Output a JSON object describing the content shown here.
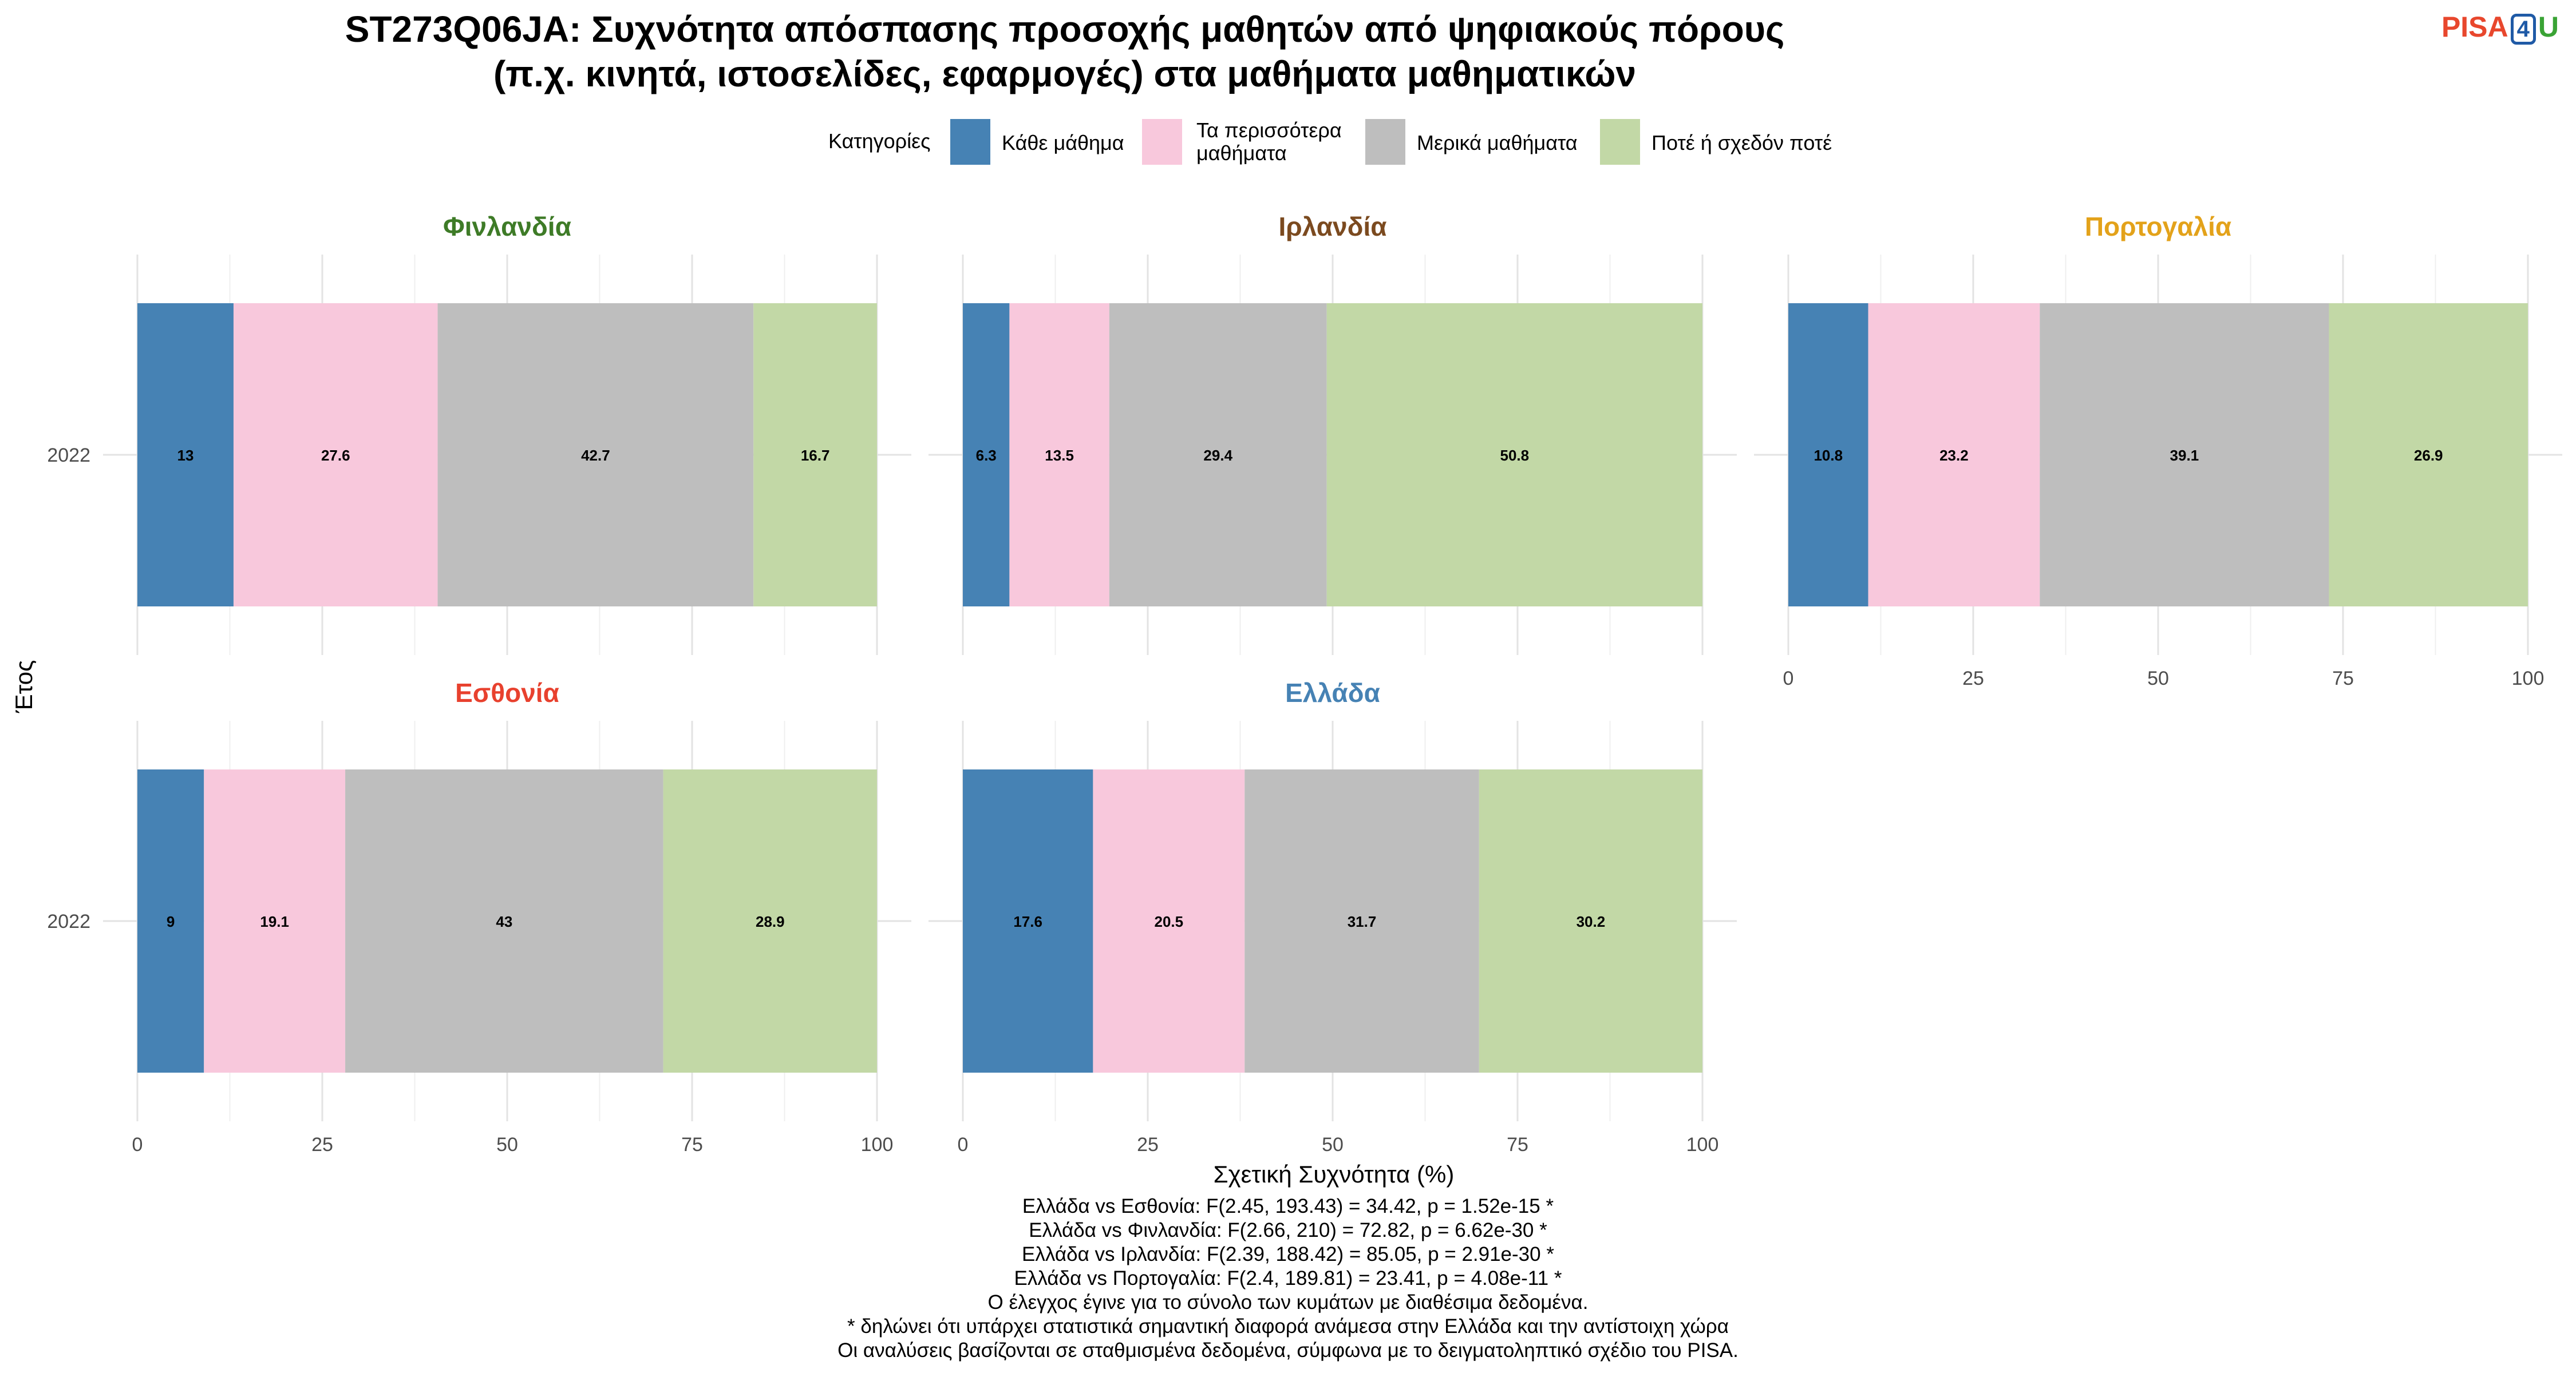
{
  "title_lines": [
    "ST273Q06JA: Συχνότητα απόσπασης προσοχής μαθητών από ψηφιακούς πόρους",
    "(π.χ. κινητά, ιστοσελίδες, εφαρμογές) στα μαθήματα μαθηματικών"
  ],
  "logo": {
    "part1": "PISA",
    "part2": "4",
    "part3": "U"
  },
  "legend": {
    "title": "Κατηγορίες",
    "items": [
      {
        "label_lines": [
          "Κάθε μάθημα"
        ],
        "color": "#4682b4"
      },
      {
        "label_lines": [
          "Τα περισσότερα",
          "μαθήματα"
        ],
        "color": "#f8c8dc"
      },
      {
        "label_lines": [
          "Μερικά μαθήματα"
        ],
        "color": "#bebebe"
      },
      {
        "label_lines": [
          "Ποτέ ή σχεδόν ποτέ"
        ],
        "color": "#c2d8a6"
      }
    ]
  },
  "chart_data": {
    "type": "bar",
    "orientation": "horizontal",
    "stacked": true,
    "xlabel": "Σχετική Συχνότητα (%)",
    "ylabel": "Έτος",
    "xlim": [
      0,
      100
    ],
    "xticks": [
      0,
      25,
      50,
      75,
      100
    ],
    "categories": [
      "2022"
    ],
    "series_names": [
      "Κάθε μάθημα",
      "Τα περισσότερα μαθήματα",
      "Μερικά μαθήματα",
      "Ποτέ ή σχεδόν ποτέ"
    ],
    "colors": [
      "#4682b4",
      "#f8c8dc",
      "#bebebe",
      "#c2d8a6"
    ],
    "panels": [
      {
        "name": "Φινλανδία",
        "title_color": "#3e7b27",
        "values": [
          13,
          27.6,
          42.7,
          16.7
        ],
        "labels": [
          "13",
          "27.6",
          "42.7",
          "16.7"
        ]
      },
      {
        "name": "Ιρλανδία",
        "title_color": "#7b4a1f",
        "values": [
          6.3,
          13.5,
          29.4,
          50.8
        ],
        "labels": [
          "6.3",
          "13.5",
          "29.4",
          "50.8"
        ]
      },
      {
        "name": "Πορτογαλία",
        "title_color": "#e3a21a",
        "values": [
          10.8,
          23.2,
          39.1,
          26.9
        ],
        "labels": [
          "10.8",
          "23.2",
          "39.1",
          "26.9"
        ]
      },
      {
        "name": "Εσθονία",
        "title_color": "#e8412e",
        "values": [
          9,
          19.1,
          43,
          28.9
        ],
        "labels": [
          "9",
          "19.1",
          "43",
          "28.9"
        ]
      },
      {
        "name": "Ελλάδα",
        "title_color": "#4682b4",
        "values": [
          17.6,
          20.5,
          31.7,
          30.2
        ],
        "labels": [
          "17.6",
          "20.5",
          "31.7",
          "30.2"
        ]
      }
    ]
  },
  "caption_lines": [
    "Ελλάδα vs Εσθονία: F(2.45, 193.43) = 34.42, p = 1.52e-15 *",
    "Ελλάδα vs Φινλανδία: F(2.66, 210) = 72.82, p = 6.62e-30 *",
    "Ελλάδα vs Ιρλανδία: F(2.39, 188.42) = 85.05, p = 2.91e-30 *",
    "Ελλάδα vs Πορτογαλία: F(2.4, 189.81) = 23.41, p = 4.08e-11 *",
    "Ο έλεγχος έγινε για το σύνολο των κυμάτων με διαθέσιμα δεδομένα.",
    "* δηλώνει ότι υπάρχει στατιστικά σημαντική διαφορά ανάμεσα στην Ελλάδα και την αντίστοιχη χώρα",
    "Οι αναλύσεις βασίζονται σε σταθμισμένα δεδομένα, σύμφωνα με το δειγματοληπτικό σχέδιο του PISA."
  ]
}
